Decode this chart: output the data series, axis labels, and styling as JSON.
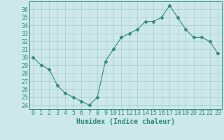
{
  "x": [
    0,
    1,
    2,
    3,
    4,
    5,
    6,
    7,
    8,
    9,
    10,
    11,
    12,
    13,
    14,
    15,
    16,
    17,
    18,
    19,
    20,
    21,
    22,
    23
  ],
  "y": [
    30,
    29,
    28.5,
    26.5,
    25.5,
    25,
    24.5,
    24,
    25,
    29.5,
    31,
    32.5,
    33,
    33.5,
    34.5,
    34.5,
    35,
    36.5,
    35,
    33.5,
    32.5,
    32.5,
    32,
    30.5
  ],
  "xlabel": "Humidex (Indice chaleur)",
  "ylim": [
    23.5,
    37
  ],
  "xlim": [
    -0.5,
    23.5
  ],
  "yticks": [
    24,
    25,
    26,
    27,
    28,
    29,
    30,
    31,
    32,
    33,
    34,
    35,
    36
  ],
  "xticks": [
    0,
    1,
    2,
    3,
    4,
    5,
    6,
    7,
    8,
    9,
    10,
    11,
    12,
    13,
    14,
    15,
    16,
    17,
    18,
    19,
    20,
    21,
    22,
    23
  ],
  "line_color": "#2e8b7a",
  "marker": "D",
  "marker_size": 2.5,
  "bg_color": "#cce8e8",
  "grid_color": "#aacccc",
  "tick_fontsize": 6,
  "xlabel_fontsize": 7
}
